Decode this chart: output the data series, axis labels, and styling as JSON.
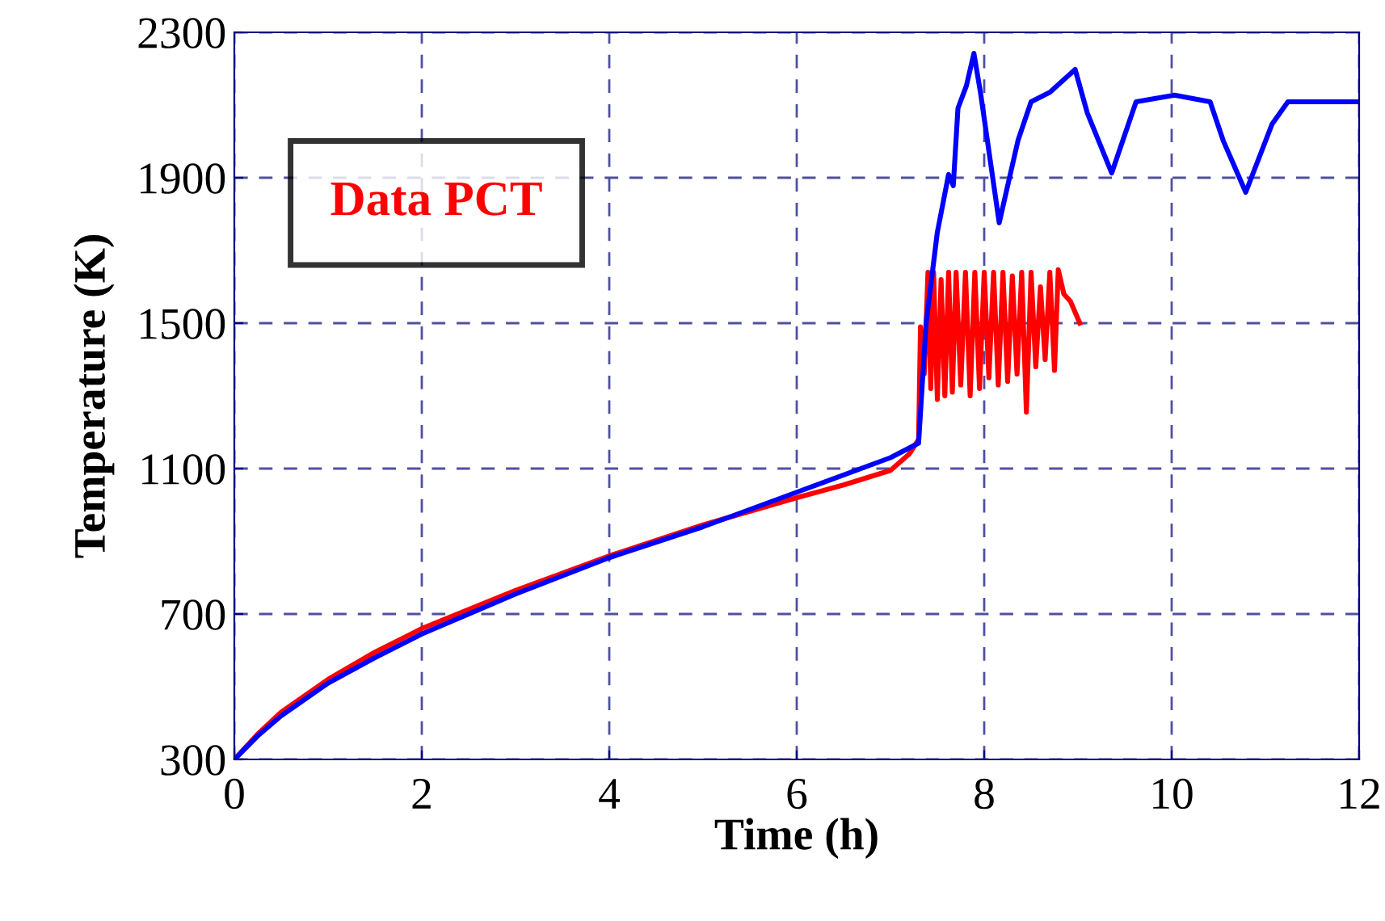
{
  "chart_data": {
    "type": "line",
    "xlabel": "Time (h)",
    "ylabel": "Temperature (K)",
    "xlim": [
      0,
      12
    ],
    "ylim": [
      300,
      2300
    ],
    "xticks": [
      0,
      2,
      4,
      6,
      8,
      10,
      12
    ],
    "yticks": [
      300,
      700,
      1100,
      1500,
      1900,
      2300
    ],
    "grid": true,
    "legend": "top left",
    "line_style": "solid",
    "marker": "none",
    "series": [
      {
        "name": "Data PCT",
        "color": "#ff0000",
        "x": [
          0,
          0.25,
          0.5,
          1,
          1.5,
          2,
          3,
          4,
          5,
          6,
          6.5,
          7,
          7.2,
          7.3,
          7.32,
          7.36,
          7.4,
          7.43,
          7.46,
          7.5,
          7.54,
          7.58,
          7.62,
          7.66,
          7.7,
          7.75,
          7.8,
          7.85,
          7.9,
          7.95,
          8.0,
          8.05,
          8.1,
          8.15,
          8.2,
          8.25,
          8.3,
          8.35,
          8.4,
          8.45,
          8.5,
          8.55,
          8.6,
          8.65,
          8.7,
          8.75,
          8.79,
          8.85,
          8.92,
          9.02
        ],
        "values": [
          300,
          370,
          430,
          520,
          595,
          660,
          765,
          860,
          945,
          1020,
          1055,
          1095,
          1140,
          1180,
          1490,
          1360,
          1640,
          1320,
          1640,
          1290,
          1620,
          1300,
          1640,
          1310,
          1640,
          1330,
          1640,
          1300,
          1640,
          1320,
          1640,
          1350,
          1640,
          1330,
          1640,
          1340,
          1630,
          1360,
          1640,
          1255,
          1640,
          1380,
          1600,
          1400,
          1640,
          1370,
          1647,
          1580,
          1560,
          1500
        ]
      },
      {
        "color": "#0000ff",
        "x": [
          0,
          0.25,
          0.5,
          1,
          1.5,
          2,
          3,
          4,
          5,
          6,
          7,
          7.3,
          7.38,
          7.5,
          7.62,
          7.67,
          7.72,
          7.81,
          7.89,
          7.96,
          8.16,
          8.36,
          8.5,
          8.7,
          8.97,
          9.1,
          9.36,
          9.62,
          10.03,
          10.41,
          10.55,
          10.79,
          11.07,
          11.24,
          12
        ],
        "values": [
          300,
          365,
          420,
          510,
          580,
          645,
          755,
          855,
          940,
          1035,
          1130,
          1170,
          1500,
          1750,
          1909,
          1878,
          2091,
          2153,
          2242,
          2135,
          1776,
          2002,
          2109,
          2135,
          2198,
          2078,
          1913,
          2109,
          2127,
          2109,
          2002,
          1860,
          2047,
          2109,
          2109
        ]
      }
    ]
  }
}
